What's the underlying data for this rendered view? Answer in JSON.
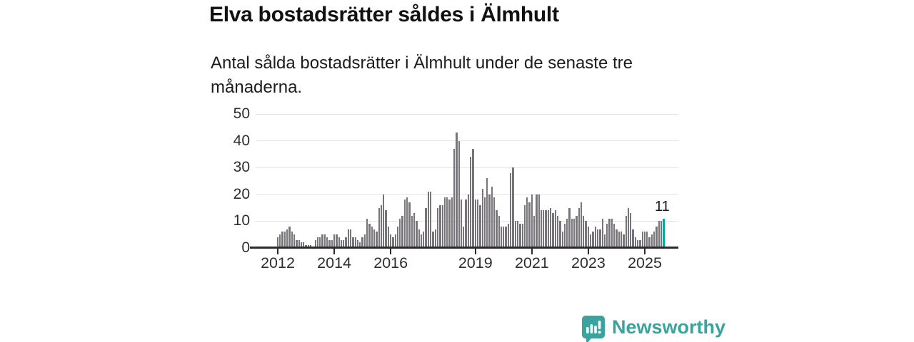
{
  "header": {
    "title": "Elva bostadsrätter såldes i Älmhult",
    "subtitle_line1": "Antal sålda bostadsrätter i Älmhult under de senaste tre",
    "subtitle_line2": "månaderna."
  },
  "branding": {
    "name": "Newsworthy",
    "logo_icon": "speech-bubble-bar-chart-icon",
    "color": "#3ba39e"
  },
  "chart_data": {
    "type": "bar",
    "title": "Elva bostadsrätter såldes i Älmhult",
    "subtitle": "Antal sålda bostadsrätter i Älmhult under de senaste tre månaderna.",
    "unit": "sålda bostadsrätter per månad",
    "start_month": "2012-01",
    "end_month": "2025-09",
    "values": [
      4,
      5,
      6,
      6,
      7,
      8,
      6,
      5,
      3,
      3,
      2,
      2,
      1,
      1,
      1,
      0,
      3,
      4,
      4,
      5,
      5,
      4,
      3,
      3,
      5,
      5,
      4,
      3,
      3,
      4,
      7,
      7,
      4,
      4,
      3,
      2,
      4,
      5,
      11,
      9,
      8,
      7,
      6,
      15,
      16,
      20,
      14,
      8,
      5,
      4,
      5,
      8,
      11,
      12,
      18,
      19,
      17,
      12,
      13,
      10,
      7,
      5,
      6,
      15,
      21,
      21,
      6,
      7,
      15,
      16,
      16,
      19,
      19,
      18,
      19,
      37,
      43,
      40,
      18,
      8,
      18,
      20,
      34,
      37,
      18,
      18,
      16,
      22,
      19,
      26,
      20,
      23,
      19,
      14,
      12,
      8,
      8,
      8,
      9,
      28,
      30,
      10,
      10,
      9,
      9,
      16,
      19,
      17,
      20,
      12,
      20,
      20,
      14,
      14,
      14,
      14,
      15,
      13,
      14,
      12,
      10,
      6,
      9,
      11,
      15,
      11,
      11,
      12,
      15,
      17,
      12,
      10,
      8,
      5,
      6,
      8,
      7,
      7,
      11,
      5,
      9,
      11,
      11,
      9,
      7,
      6,
      6,
      5,
      12,
      15,
      13,
      7,
      4,
      3,
      3,
      6,
      6,
      6,
      4,
      5,
      6,
      8,
      10,
      10,
      11
    ],
    "highlight_last_value": "11",
    "ylim": [
      0,
      50
    ],
    "y_ticks": [
      0,
      10,
      20,
      30,
      40,
      50
    ],
    "x_tick_years": [
      2012,
      2014,
      2016,
      2019,
      2021,
      2023,
      2025
    ],
    "grid": "horizontal",
    "legend": "none",
    "colors": {
      "bar": "#77757a",
      "highlight": "#00a79b",
      "gridline": "#e3e3e3",
      "axis": "#2b2b2b",
      "label": "#2e2e2e"
    }
  }
}
